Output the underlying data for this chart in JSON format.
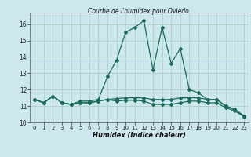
{
  "title": "Courbe de l'humidex pour Oviedo",
  "xlabel": "Humidex (Indice chaleur)",
  "background_color": "#cce8ee",
  "grid_color": "#aaccbb",
  "line_color": "#1a6b5a",
  "xlim": [
    -0.5,
    23.5
  ],
  "ylim": [
    10,
    16.7
  ],
  "yticks": [
    10,
    11,
    12,
    13,
    14,
    15,
    16
  ],
  "xticks": [
    0,
    1,
    2,
    3,
    4,
    5,
    6,
    7,
    8,
    9,
    10,
    11,
    12,
    13,
    14,
    15,
    16,
    17,
    18,
    19,
    20,
    21,
    22,
    23
  ],
  "series": [
    {
      "x": [
        0,
        1,
        2,
        3,
        4,
        5,
        6,
        7,
        8,
        9,
        10,
        11,
        12,
        13,
        14,
        15,
        16,
        17,
        18,
        19,
        20,
        21,
        22,
        23
      ],
      "y": [
        11.4,
        11.2,
        11.6,
        11.2,
        11.1,
        11.3,
        11.3,
        11.4,
        12.8,
        13.8,
        15.5,
        15.8,
        16.2,
        13.2,
        15.8,
        13.6,
        14.5,
        12.0,
        11.8,
        11.4,
        11.4,
        11.0,
        10.8,
        10.4
      ]
    },
    {
      "x": [
        0,
        1,
        2,
        3,
        4,
        5,
        6,
        7,
        8,
        9,
        10,
        11,
        12,
        13,
        14,
        15,
        16,
        17,
        18,
        19,
        20,
        21,
        22,
        23
      ],
      "y": [
        11.4,
        11.2,
        11.6,
        11.2,
        11.1,
        11.2,
        11.2,
        11.3,
        11.4,
        11.45,
        11.5,
        11.5,
        11.5,
        11.4,
        11.4,
        11.4,
        11.5,
        11.5,
        11.5,
        11.4,
        11.4,
        11.0,
        10.8,
        10.4
      ]
    },
    {
      "x": [
        0,
        1,
        2,
        3,
        4,
        5,
        6,
        7,
        8,
        9,
        10,
        11,
        12,
        13,
        14,
        15,
        16,
        17,
        18,
        19,
        20,
        21,
        22,
        23
      ],
      "y": [
        11.4,
        11.2,
        11.6,
        11.2,
        11.1,
        11.2,
        11.2,
        11.3,
        11.4,
        11.3,
        11.35,
        11.35,
        11.3,
        11.1,
        11.1,
        11.1,
        11.2,
        11.3,
        11.3,
        11.2,
        11.2,
        10.9,
        10.7,
        10.35
      ]
    }
  ]
}
